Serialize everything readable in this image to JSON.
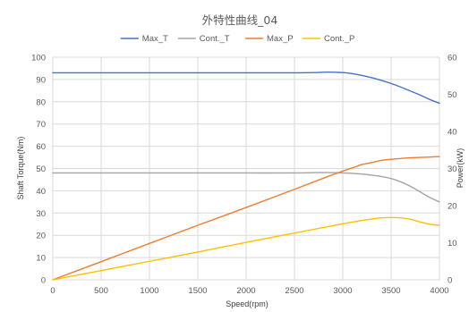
{
  "chart_data": {
    "type": "line",
    "title": "外特性曲线_04",
    "xlabel": "Speed(rpm)",
    "ylabel": "Shaft Torque(Nm)",
    "y2label": "Power(kW)",
    "xlim": [
      0,
      4000
    ],
    "ylim": [
      0,
      100
    ],
    "y2lim": [
      0,
      60
    ],
    "x_ticks": [
      "0",
      "500",
      "1000",
      "1500",
      "2000",
      "2500",
      "3000",
      "3500",
      "4000"
    ],
    "y_ticks": [
      "0",
      "10",
      "20",
      "30",
      "40",
      "50",
      "60",
      "70",
      "80",
      "90",
      "100"
    ],
    "y2_ticks": [
      "0",
      "10",
      "20",
      "30",
      "40",
      "50",
      "60"
    ],
    "grid": true,
    "legend_position": "top",
    "series": [
      {
        "name": "Max_T",
        "color": "#4472c4",
        "axis": "left",
        "x": [
          0,
          500,
          1000,
          1500,
          2000,
          2500,
          2700,
          2850,
          3000,
          3100,
          3200,
          3300,
          3400,
          3500,
          3600,
          3700,
          3800,
          3900,
          4000
        ],
        "y": [
          93,
          93,
          93,
          93,
          93,
          93,
          93.1,
          93.3,
          93.1,
          92.6,
          91.8,
          90.8,
          89.6,
          88.2,
          86.6,
          84.8,
          83,
          81,
          79.3
        ]
      },
      {
        "name": "Cont._T",
        "color": "#a5a5a5",
        "axis": "left",
        "x": [
          0,
          500,
          1000,
          1500,
          2000,
          2500,
          2800,
          3000,
          3200,
          3300,
          3400,
          3500,
          3600,
          3700,
          3800,
          3900,
          4000
        ],
        "y": [
          48,
          48,
          48,
          48,
          48,
          48,
          48.2,
          48,
          47.5,
          47,
          46.4,
          45.5,
          44,
          42,
          39.5,
          37,
          35
        ]
      },
      {
        "name": "Max_P",
        "color": "#ed7d31",
        "axis": "right",
        "x": [
          0,
          500,
          1000,
          1500,
          2000,
          2500,
          2800,
          3000,
          3100,
          3200,
          3300,
          3400,
          3500,
          3600,
          3700,
          3800,
          3900,
          4000
        ],
        "y": [
          0,
          4.9,
          9.8,
          14.7,
          19.5,
          24.4,
          27.4,
          29.3,
          30.2,
          31.1,
          31.6,
          32.2,
          32.5,
          32.7,
          32.9,
          33.0,
          33.1,
          33.2
        ]
      },
      {
        "name": "Cont._P",
        "color": "#ffc000",
        "axis": "right",
        "x": [
          0,
          500,
          1000,
          1500,
          2000,
          2500,
          2800,
          3000,
          3200,
          3300,
          3400,
          3500,
          3600,
          3700,
          3800,
          3900,
          4000
        ],
        "y": [
          0,
          2.5,
          5.0,
          7.5,
          10.1,
          12.6,
          14.1,
          15.1,
          16.0,
          16.4,
          16.7,
          16.8,
          16.7,
          16.3,
          15.6,
          15.0,
          14.7
        ]
      }
    ]
  }
}
